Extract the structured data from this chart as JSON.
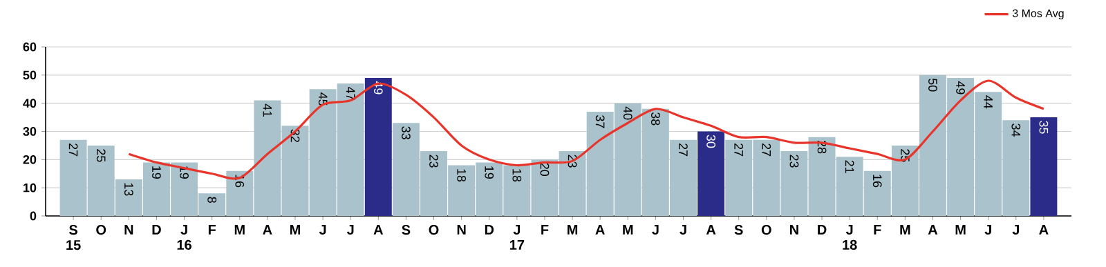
{
  "chart_data": {
    "type": "bar",
    "categories": [
      "S 15",
      "O",
      "N",
      "D",
      "J 16",
      "F",
      "M",
      "A",
      "M",
      "J",
      "J",
      "A",
      "S",
      "O",
      "N",
      "D",
      "J 17",
      "F",
      "M",
      "A",
      "M",
      "J",
      "J",
      "A",
      "S",
      "O",
      "N",
      "D",
      "J 18",
      "F",
      "M",
      "A",
      "M",
      "J",
      "J",
      "A"
    ],
    "series": [
      {
        "value_labels": [
          "27",
          "25",
          "13",
          "19",
          "19",
          "8",
          "16",
          "41",
          "32",
          "45",
          "47",
          "49",
          "33",
          "23",
          "18",
          "19",
          "18",
          "20",
          "23",
          "37",
          "40",
          "38",
          "27",
          "30",
          "27",
          "27",
          "23",
          "28",
          "21",
          "16",
          "25",
          "50",
          "49",
          "44",
          "34",
          "35"
        ],
        "colors": [
          "#a9c2cb",
          "#a9c2cb",
          "#a9c2cb",
          "#a9c2cb",
          "#a9c2cb",
          "#a9c2cb",
          "#a9c2cb",
          "#a9c2cb",
          "#a9c2cb",
          "#a9c2cb",
          "#a9c2cb",
          "#2b2b8a",
          "#a9c2cb",
          "#a9c2cb",
          "#a9c2cb",
          "#a9c2cb",
          "#a9c2cb",
          "#a9c2cb",
          "#a9c2cb",
          "#a9c2cb",
          "#a9c2cb",
          "#a9c2cb",
          "#a9c2cb",
          "#2b2b8a",
          "#a9c2cb",
          "#a9c2cb",
          "#a9c2cb",
          "#a9c2cb",
          "#a9c2cb",
          "#a9c2cb",
          "#a9c2cb",
          "#a9c2cb",
          "#a9c2cb",
          "#a9c2cb",
          "#a9c2cb",
          "#2b2b8a"
        ],
        "values": [
          27,
          25,
          13,
          19,
          19,
          8,
          16,
          41,
          32,
          45,
          47,
          49,
          33,
          23,
          18,
          19,
          18,
          20,
          23,
          37,
          40,
          38,
          27,
          30,
          27,
          27,
          23,
          28,
          21,
          16,
          25,
          50,
          49,
          44,
          34,
          35
        ]
      },
      {
        "type": "line",
        "name": "3 Mos Avg",
        "color": "#e8342a",
        "values": [
          null,
          null,
          22,
          19,
          17,
          15,
          13.5,
          22,
          30,
          39.5,
          41,
          47,
          43,
          35,
          25,
          20,
          18,
          19,
          19.5,
          27,
          33,
          38,
          35,
          32,
          28,
          28,
          26,
          26,
          24,
          22,
          20,
          30,
          41,
          48,
          42,
          38
        ]
      }
    ],
    "ylim": [
      0,
      60
    ],
    "yticks": [
      0,
      10,
      20,
      30,
      40,
      50,
      60
    ],
    "grid": "y",
    "legend": "top right"
  }
}
